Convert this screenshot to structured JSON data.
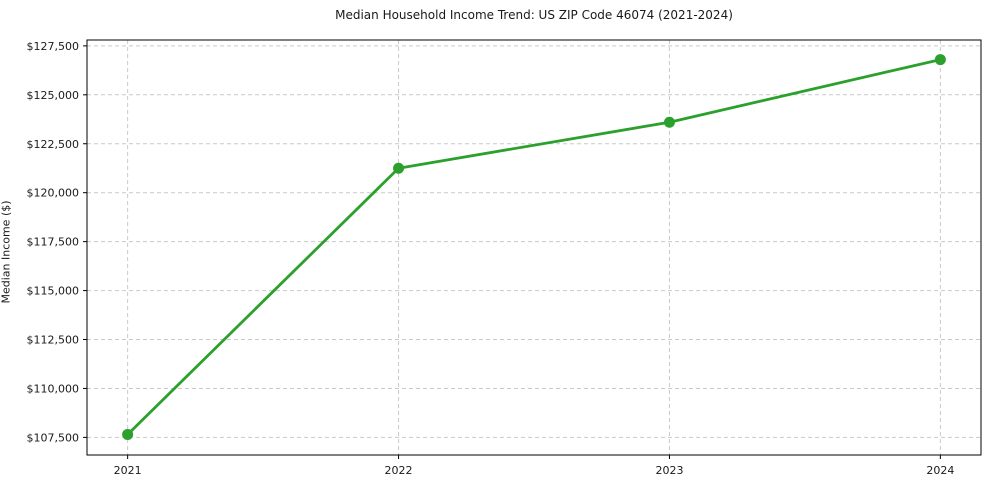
{
  "chart_data": {
    "type": "line",
    "title": "Median Household Income Trend: US ZIP Code 46074 (2021-2024)",
    "xlabel": "",
    "ylabel": "Median Income ($)",
    "categories": [
      "2021",
      "2022",
      "2023",
      "2024"
    ],
    "values": [
      107650,
      121250,
      123600,
      126800
    ],
    "ylim": [
      106600,
      127800
    ],
    "yticks": [
      107500,
      110000,
      112500,
      115000,
      117500,
      120000,
      122500,
      125000,
      127500
    ],
    "ytick_labels": [
      "$107,500",
      "$110,000",
      "$112,500",
      "$115,000",
      "$117,500",
      "$120,000",
      "$122,500",
      "$125,000",
      "$127,500"
    ],
    "grid": true,
    "grid_style": "dashed",
    "legend_position": "none",
    "colors": {
      "line": "#2ca02c",
      "marker": "#2ca02c",
      "grid": "#c9c9c9",
      "spine": "#000000",
      "text": "#1a1a1a",
      "background": "#ffffff"
    }
  }
}
